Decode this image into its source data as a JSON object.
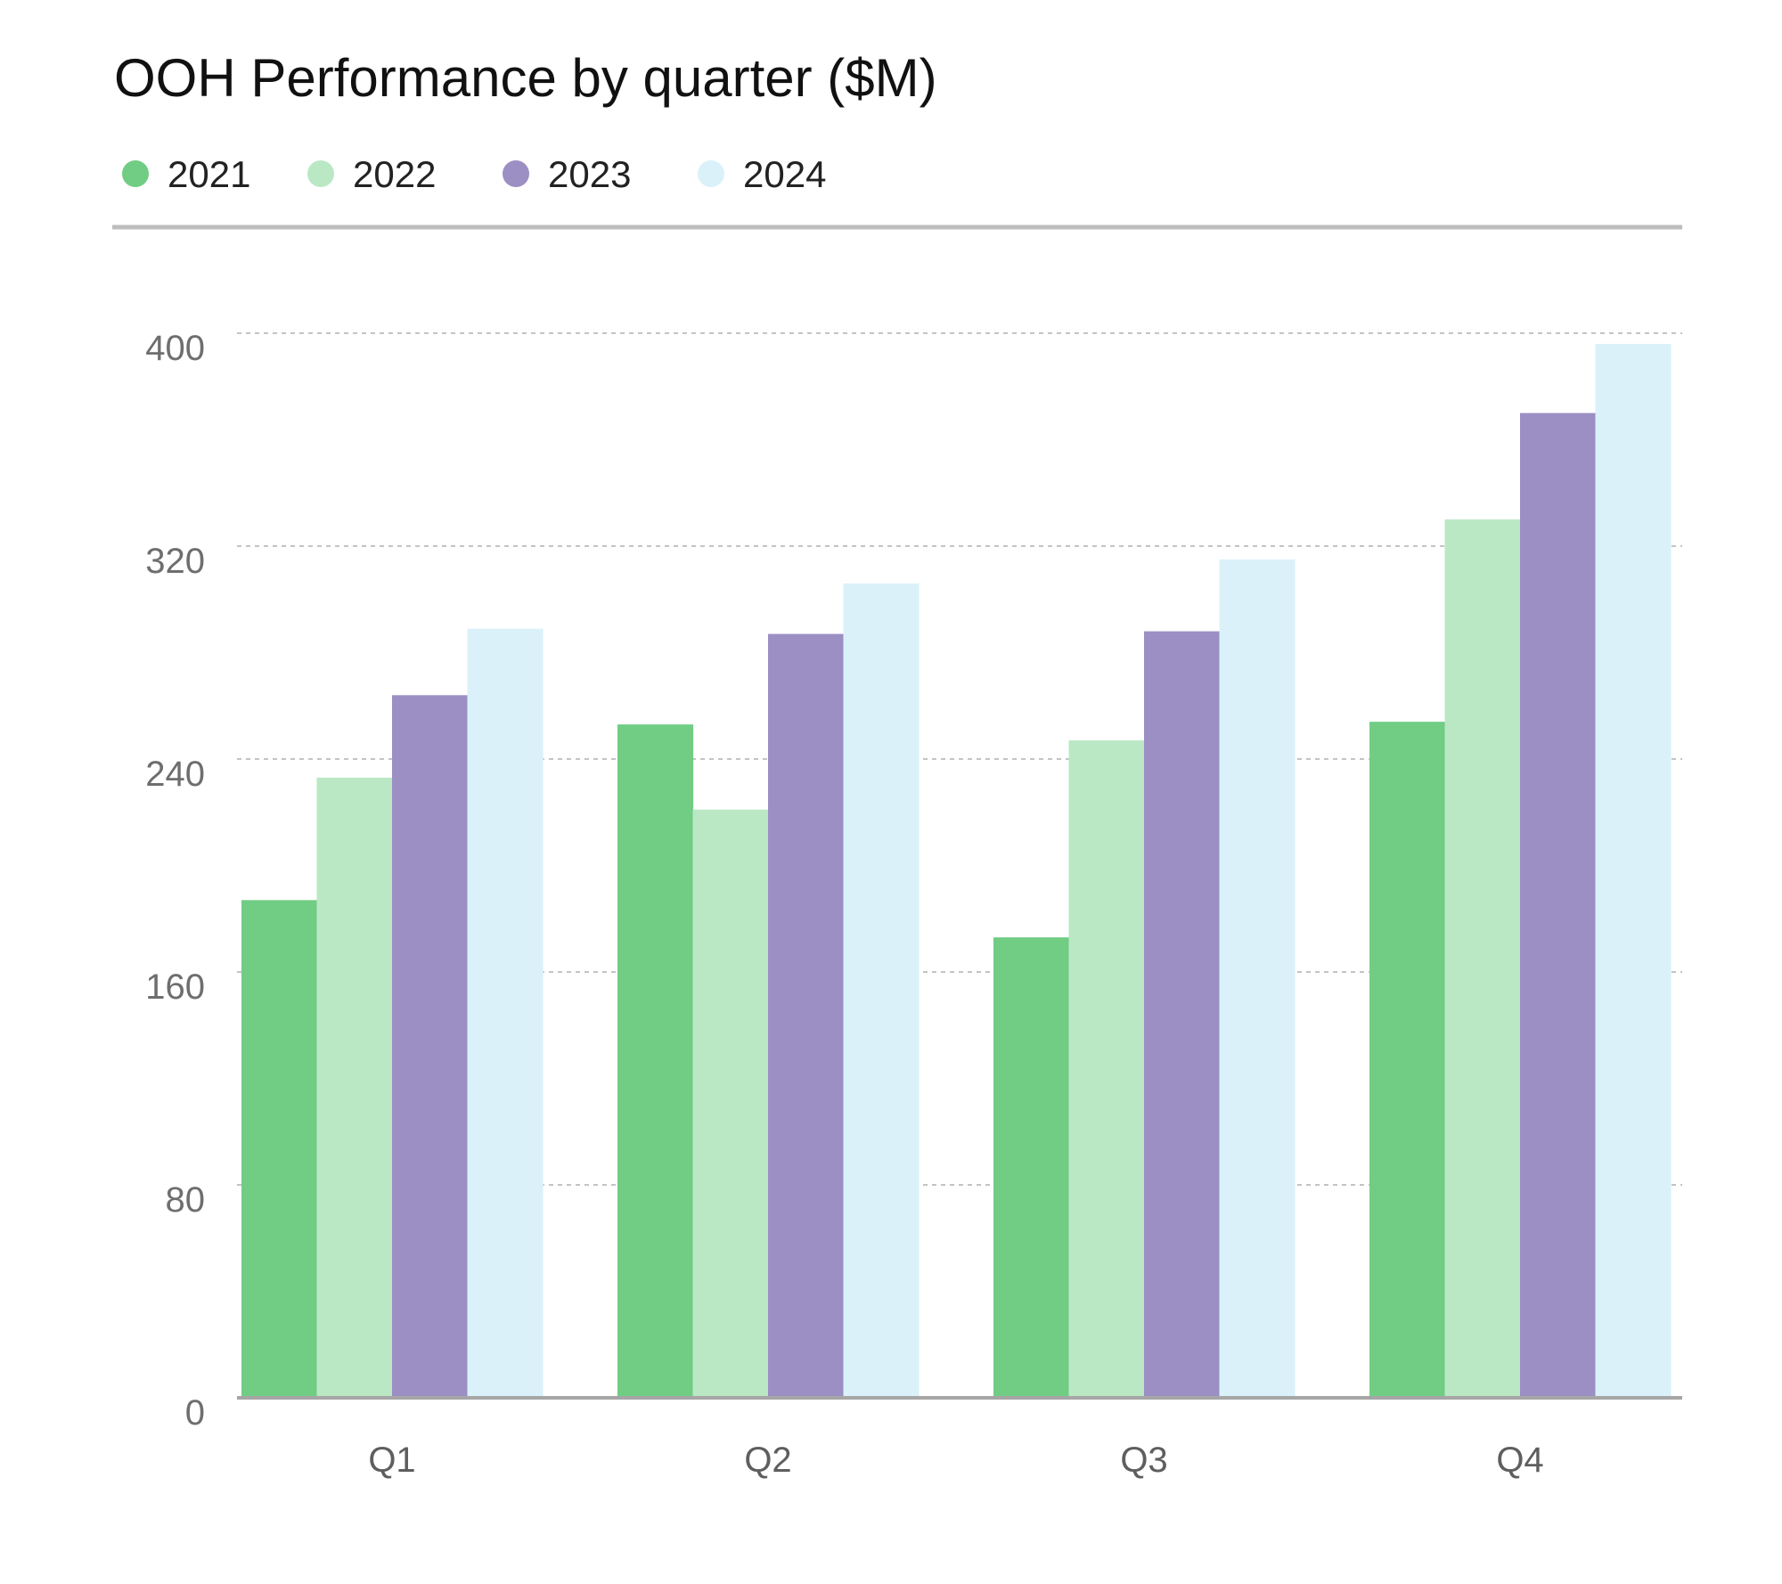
{
  "chart_data": {
    "type": "bar",
    "title": "OOH Performance by quarter ($M)",
    "xlabel": "",
    "ylabel": "",
    "categories": [
      "Q1",
      "Q2",
      "Q3",
      "Q4"
    ],
    "series": [
      {
        "name": "2021",
        "color": "#71cc84",
        "values": [
          187,
          253,
          173,
          254
        ]
      },
      {
        "name": "2022",
        "color": "#bae8c4",
        "values": [
          233,
          221,
          247,
          330
        ]
      },
      {
        "name": "2023",
        "color": "#9b8fc3",
        "values": [
          264,
          287,
          288,
          370
        ]
      },
      {
        "name": "2024",
        "color": "#dbf1f9",
        "values": [
          289,
          306,
          315,
          396
        ]
      }
    ],
    "ylim": [
      0,
      400
    ],
    "yticks": [
      "0",
      "80",
      "160",
      "240",
      "320",
      "400"
    ],
    "grid": true,
    "legend_position": "top-left"
  }
}
